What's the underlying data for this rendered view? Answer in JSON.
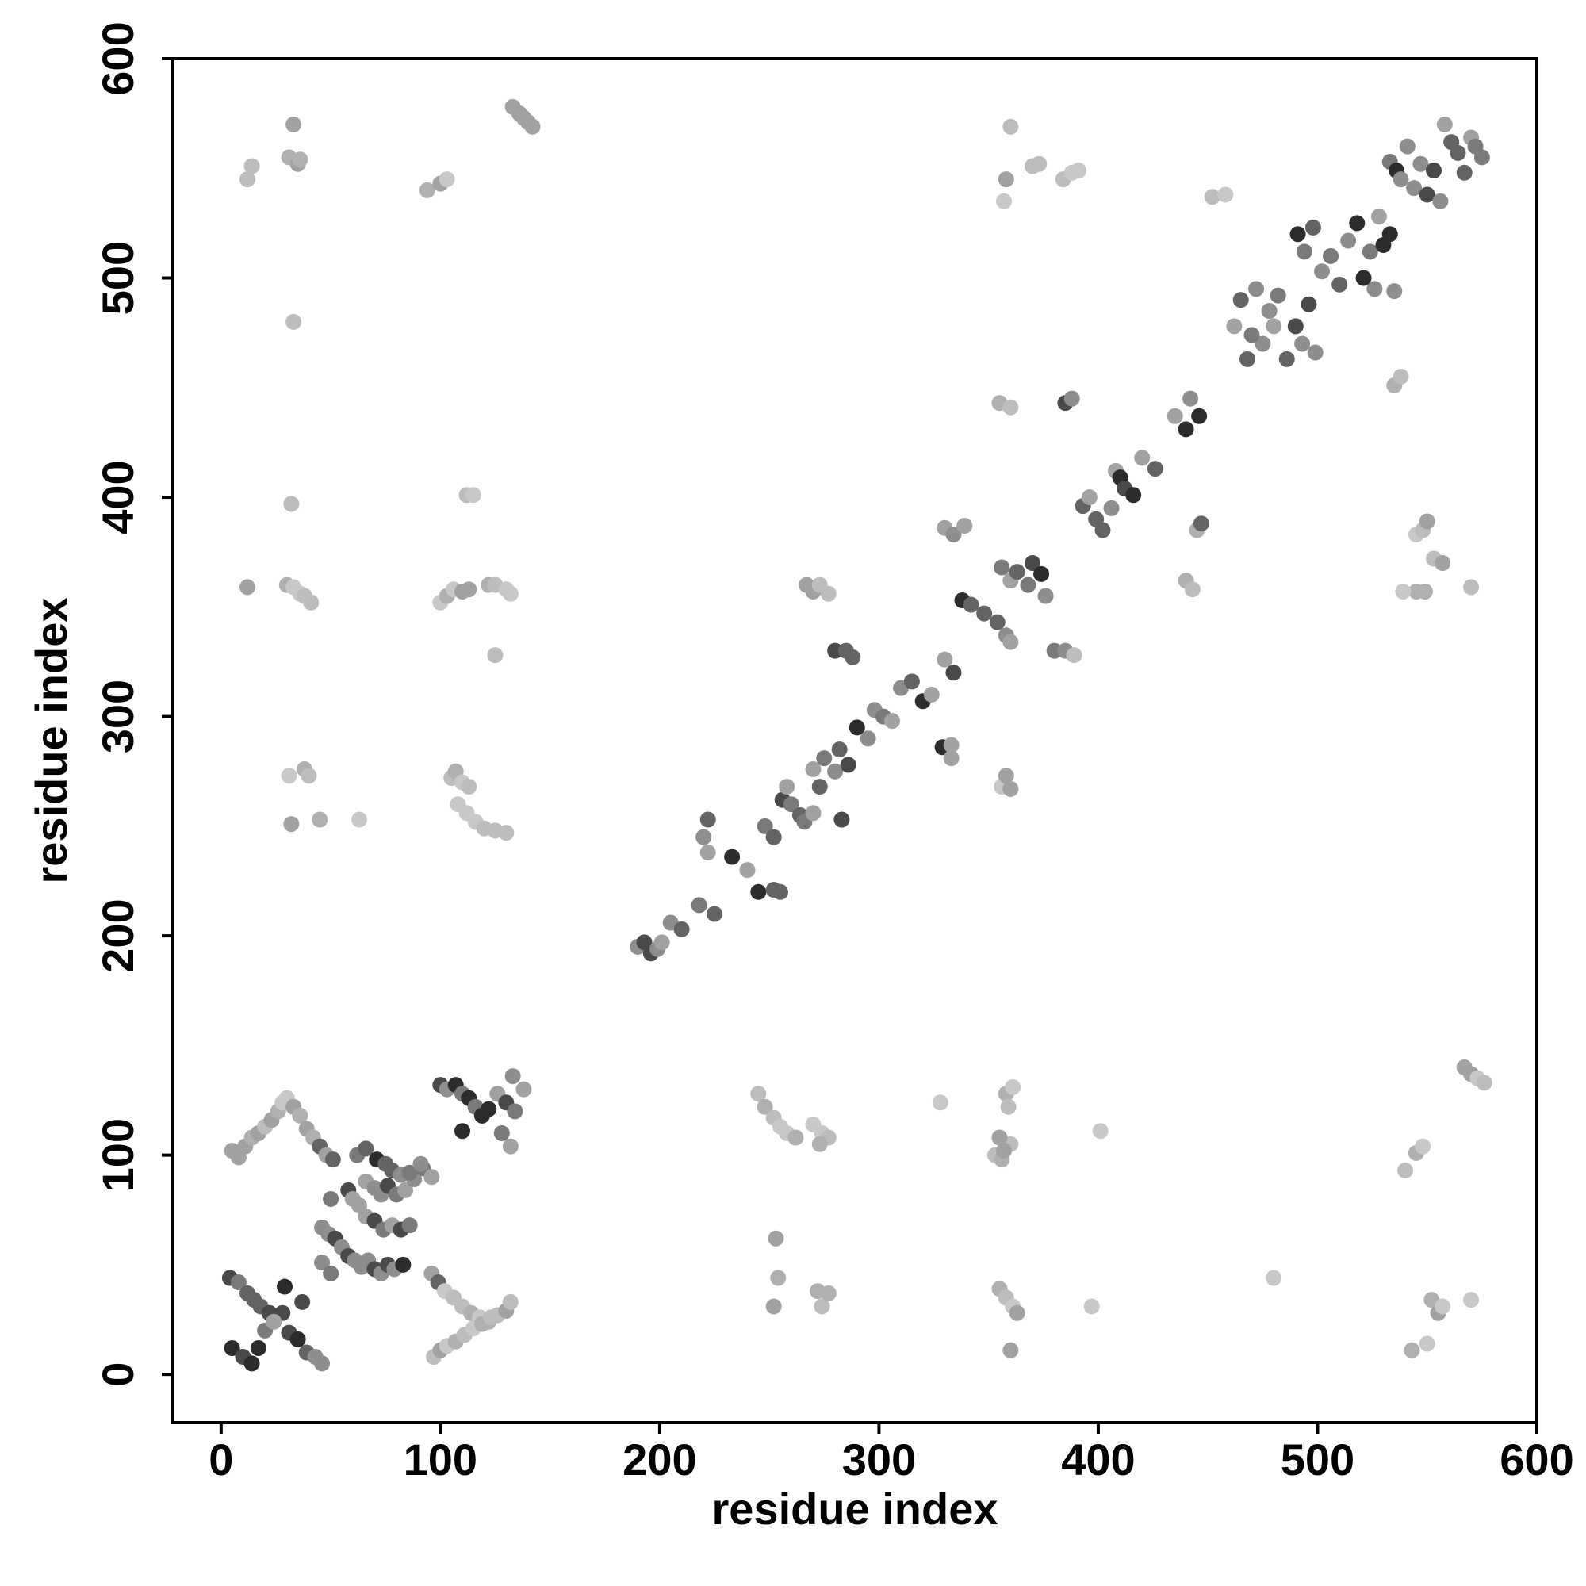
{
  "chart_data": {
    "type": "scatter",
    "title": "",
    "xlabel": "residue index",
    "ylabel": "residue index",
    "xlim": [
      -22,
      600
    ],
    "ylim": [
      -22,
      600
    ],
    "xticks": [
      0,
      100,
      200,
      300,
      400,
      500,
      600
    ],
    "yticks": [
      0,
      100,
      200,
      300,
      400,
      500,
      600
    ],
    "grid": false,
    "legend": "none",
    "color_scale": "grayscale, lighter = weaker contact, darker = stronger contact",
    "points": [
      [
        12,
        545
      ],
      [
        14,
        551
      ],
      [
        31,
        555
      ],
      [
        33,
        570
      ],
      [
        35,
        552
      ],
      [
        36,
        554
      ],
      [
        94,
        540
      ],
      [
        100,
        543
      ],
      [
        103,
        545
      ],
      [
        133,
        578
      ],
      [
        136,
        575
      ],
      [
        138,
        573
      ],
      [
        140,
        571
      ],
      [
        142,
        569
      ],
      [
        358,
        545
      ],
      [
        357,
        535
      ],
      [
        360,
        569
      ],
      [
        370,
        551
      ],
      [
        373,
        552
      ],
      [
        384,
        545
      ],
      [
        388,
        548
      ],
      [
        391,
        549
      ],
      [
        452,
        537
      ],
      [
        458,
        538
      ],
      [
        33,
        480
      ],
      [
        32,
        397
      ],
      [
        112,
        401
      ],
      [
        115,
        401
      ],
      [
        12,
        359
      ],
      [
        30,
        360
      ],
      [
        33,
        359
      ],
      [
        36,
        356
      ],
      [
        38,
        355
      ],
      [
        41,
        352
      ],
      [
        100,
        352
      ],
      [
        103,
        355
      ],
      [
        106,
        358
      ],
      [
        110,
        357
      ],
      [
        113,
        358
      ],
      [
        122,
        360
      ],
      [
        125,
        360
      ],
      [
        130,
        358
      ],
      [
        132,
        356
      ],
      [
        125,
        328
      ],
      [
        31,
        273
      ],
      [
        38,
        276
      ],
      [
        40,
        273
      ],
      [
        32,
        251
      ],
      [
        45,
        253
      ],
      [
        63,
        253
      ],
      [
        105,
        272
      ],
      [
        107,
        275
      ],
      [
        110,
        270
      ],
      [
        113,
        268
      ],
      [
        108,
        260
      ],
      [
        112,
        256
      ],
      [
        116,
        252
      ],
      [
        120,
        249
      ],
      [
        125,
        248
      ],
      [
        130,
        247
      ],
      [
        330,
        386
      ],
      [
        334,
        383
      ],
      [
        339,
        387
      ],
      [
        380,
        330
      ],
      [
        385,
        330
      ],
      [
        389,
        328
      ],
      [
        355,
        443
      ],
      [
        360,
        441
      ],
      [
        385,
        443
      ],
      [
        388,
        445
      ],
      [
        545,
        383
      ],
      [
        548,
        385
      ],
      [
        550,
        389
      ],
      [
        553,
        372
      ],
      [
        557,
        370
      ],
      [
        545,
        357
      ],
      [
        549,
        357
      ],
      [
        539,
        357
      ],
      [
        570,
        359
      ],
      [
        535,
        451
      ],
      [
        538,
        455
      ],
      [
        190,
        195
      ],
      [
        193,
        197
      ],
      [
        196,
        192
      ],
      [
        199,
        194
      ],
      [
        201,
        197
      ],
      [
        205,
        206
      ],
      [
        210,
        203
      ],
      [
        218,
        214
      ],
      [
        225,
        210
      ],
      [
        222,
        253
      ],
      [
        220,
        245
      ],
      [
        222,
        238
      ],
      [
        233,
        236
      ],
      [
        240,
        230
      ],
      [
        245,
        220
      ],
      [
        252,
        221
      ],
      [
        255,
        220
      ],
      [
        248,
        250
      ],
      [
        252,
        245
      ],
      [
        256,
        262
      ],
      [
        258,
        268
      ],
      [
        260,
        260
      ],
      [
        264,
        255
      ],
      [
        266,
        252
      ],
      [
        270,
        256
      ],
      [
        270,
        276
      ],
      [
        273,
        268
      ],
      [
        275,
        281
      ],
      [
        280,
        275
      ],
      [
        282,
        285
      ],
      [
        286,
        278
      ],
      [
        283,
        253
      ],
      [
        267,
        360
      ],
      [
        270,
        357
      ],
      [
        273,
        360
      ],
      [
        277,
        356
      ],
      [
        280,
        330
      ],
      [
        285,
        330
      ],
      [
        288,
        327
      ],
      [
        290,
        295
      ],
      [
        295,
        290
      ],
      [
        298,
        303
      ],
      [
        302,
        300
      ],
      [
        306,
        298
      ],
      [
        310,
        313
      ],
      [
        315,
        316
      ],
      [
        320,
        307
      ],
      [
        324,
        310
      ],
      [
        330,
        326
      ],
      [
        334,
        320
      ],
      [
        338,
        353
      ],
      [
        342,
        351
      ],
      [
        348,
        347
      ],
      [
        354,
        343
      ],
      [
        358,
        337
      ],
      [
        360,
        334
      ],
      [
        356,
        368
      ],
      [
        360,
        362
      ],
      [
        363,
        366
      ],
      [
        368,
        360
      ],
      [
        370,
        370
      ],
      [
        374,
        365
      ],
      [
        376,
        355
      ],
      [
        356,
        268
      ],
      [
        358,
        273
      ],
      [
        360,
        267
      ],
      [
        329,
        286
      ],
      [
        333,
        281
      ],
      [
        333,
        287
      ],
      [
        393,
        396
      ],
      [
        396,
        400
      ],
      [
        399,
        390
      ],
      [
        402,
        385
      ],
      [
        406,
        395
      ],
      [
        408,
        412
      ],
      [
        410,
        409
      ],
      [
        412,
        404
      ],
      [
        416,
        401
      ],
      [
        420,
        418
      ],
      [
        426,
        413
      ],
      [
        435,
        437
      ],
      [
        440,
        431
      ],
      [
        442,
        445
      ],
      [
        446,
        437
      ],
      [
        440,
        362
      ],
      [
        443,
        358
      ],
      [
        445,
        385
      ],
      [
        447,
        388
      ],
      [
        462,
        478
      ],
      [
        465,
        490
      ],
      [
        468,
        463
      ],
      [
        472,
        495
      ],
      [
        475,
        470
      ],
      [
        478,
        485
      ],
      [
        482,
        492
      ],
      [
        486,
        463
      ],
      [
        490,
        478
      ],
      [
        493,
        470
      ],
      [
        496,
        488
      ],
      [
        499,
        466
      ],
      [
        480,
        478
      ],
      [
        470,
        474
      ],
      [
        491,
        520
      ],
      [
        494,
        512
      ],
      [
        498,
        523
      ],
      [
        502,
        503
      ],
      [
        506,
        510
      ],
      [
        510,
        497
      ],
      [
        514,
        517
      ],
      [
        518,
        525
      ],
      [
        521,
        500
      ],
      [
        524,
        512
      ],
      [
        526,
        495
      ],
      [
        528,
        528
      ],
      [
        530,
        515
      ],
      [
        533,
        520
      ],
      [
        535,
        494
      ],
      [
        533,
        553
      ],
      [
        536,
        549
      ],
      [
        538,
        545
      ],
      [
        541,
        560
      ],
      [
        544,
        541
      ],
      [
        547,
        552
      ],
      [
        550,
        538
      ],
      [
        553,
        549
      ],
      [
        556,
        535
      ],
      [
        558,
        570
      ],
      [
        561,
        562
      ],
      [
        564,
        557
      ],
      [
        567,
        548
      ],
      [
        570,
        564
      ],
      [
        572,
        560
      ],
      [
        575,
        555
      ],
      [
        5,
        12
      ],
      [
        10,
        8
      ],
      [
        14,
        5
      ],
      [
        17,
        12
      ],
      [
        20,
        20
      ],
      [
        24,
        24
      ],
      [
        28,
        28
      ],
      [
        31,
        19
      ],
      [
        35,
        16
      ],
      [
        39,
        10
      ],
      [
        43,
        8
      ],
      [
        46,
        5
      ],
      [
        4,
        44
      ],
      [
        8,
        42
      ],
      [
        12,
        37
      ],
      [
        15,
        34
      ],
      [
        18,
        31
      ],
      [
        22,
        28
      ],
      [
        24,
        24
      ],
      [
        5,
        102
      ],
      [
        8,
        99
      ],
      [
        11,
        104
      ],
      [
        14,
        108
      ],
      [
        17,
        110
      ],
      [
        20,
        113
      ],
      [
        23,
        116
      ],
      [
        26,
        120
      ],
      [
        28,
        124
      ],
      [
        30,
        126
      ],
      [
        33,
        122
      ],
      [
        36,
        118
      ],
      [
        39,
        112
      ],
      [
        42,
        108
      ],
      [
        45,
        104
      ],
      [
        48,
        100
      ],
      [
        51,
        98
      ],
      [
        29,
        40
      ],
      [
        37,
        33
      ],
      [
        46,
        51
      ],
      [
        50,
        46
      ],
      [
        46,
        67
      ],
      [
        49,
        64
      ],
      [
        52,
        62
      ],
      [
        55,
        58
      ],
      [
        58,
        54
      ],
      [
        61,
        52
      ],
      [
        64,
        49
      ],
      [
        67,
        52
      ],
      [
        70,
        48
      ],
      [
        73,
        46
      ],
      [
        76,
        50
      ],
      [
        79,
        48
      ],
      [
        83,
        50
      ],
      [
        50,
        80
      ],
      [
        58,
        84
      ],
      [
        63,
        77
      ],
      [
        66,
        72
      ],
      [
        70,
        70
      ],
      [
        74,
        66
      ],
      [
        78,
        68
      ],
      [
        82,
        66
      ],
      [
        86,
        68
      ],
      [
        60,
        80
      ],
      [
        66,
        88
      ],
      [
        70,
        85
      ],
      [
        73,
        82
      ],
      [
        76,
        86
      ],
      [
        80,
        82
      ],
      [
        84,
        84
      ],
      [
        88,
        89
      ],
      [
        92,
        94
      ],
      [
        96,
        90
      ],
      [
        62,
        100
      ],
      [
        66,
        103
      ],
      [
        71,
        98
      ],
      [
        75,
        96
      ],
      [
        78,
        93
      ],
      [
        82,
        91
      ],
      [
        86,
        92
      ],
      [
        91,
        96
      ],
      [
        96,
        46
      ],
      [
        99,
        42
      ],
      [
        102,
        38
      ],
      [
        106,
        35
      ],
      [
        110,
        31
      ],
      [
        114,
        28
      ],
      [
        118,
        26
      ],
      [
        122,
        24
      ],
      [
        126,
        27
      ],
      [
        130,
        29
      ],
      [
        132,
        33
      ],
      [
        97,
        8
      ],
      [
        100,
        11
      ],
      [
        103,
        13
      ],
      [
        107,
        15
      ],
      [
        111,
        18
      ],
      [
        115,
        21
      ],
      [
        119,
        23
      ],
      [
        123,
        26
      ],
      [
        100,
        132
      ],
      [
        103,
        130
      ],
      [
        107,
        132
      ],
      [
        110,
        128
      ],
      [
        113,
        126
      ],
      [
        116,
        122
      ],
      [
        119,
        118
      ],
      [
        122,
        121
      ],
      [
        126,
        128
      ],
      [
        130,
        124
      ],
      [
        134,
        120
      ],
      [
        133,
        136
      ],
      [
        138,
        130
      ],
      [
        110,
        111
      ],
      [
        128,
        110
      ],
      [
        132,
        104
      ],
      [
        245,
        128
      ],
      [
        248,
        122
      ],
      [
        252,
        117
      ],
      [
        255,
        113
      ],
      [
        258,
        110
      ],
      [
        262,
        108
      ],
      [
        270,
        114
      ],
      [
        274,
        110
      ],
      [
        277,
        108
      ],
      [
        273,
        105
      ],
      [
        253,
        62
      ],
      [
        254,
        44
      ],
      [
        252,
        31
      ],
      [
        272,
        38
      ],
      [
        274,
        31
      ],
      [
        277,
        37
      ],
      [
        328,
        124
      ],
      [
        353,
        100
      ],
      [
        356,
        98
      ],
      [
        360,
        105
      ],
      [
        358,
        128
      ],
      [
        361,
        131
      ],
      [
        359,
        122
      ],
      [
        355,
        108
      ],
      [
        357,
        102
      ],
      [
        355,
        39
      ],
      [
        358,
        35
      ],
      [
        361,
        31
      ],
      [
        363,
        28
      ],
      [
        360,
        11
      ],
      [
        401,
        111
      ],
      [
        397,
        31
      ],
      [
        480,
        44
      ],
      [
        540,
        93
      ],
      [
        545,
        101
      ],
      [
        548,
        104
      ],
      [
        543,
        11
      ],
      [
        550,
        14
      ],
      [
        552,
        34
      ],
      [
        555,
        28
      ],
      [
        557,
        31
      ],
      [
        570,
        34
      ],
      [
        567,
        140
      ],
      [
        570,
        137
      ],
      [
        573,
        135
      ],
      [
        576,
        133
      ]
    ]
  }
}
